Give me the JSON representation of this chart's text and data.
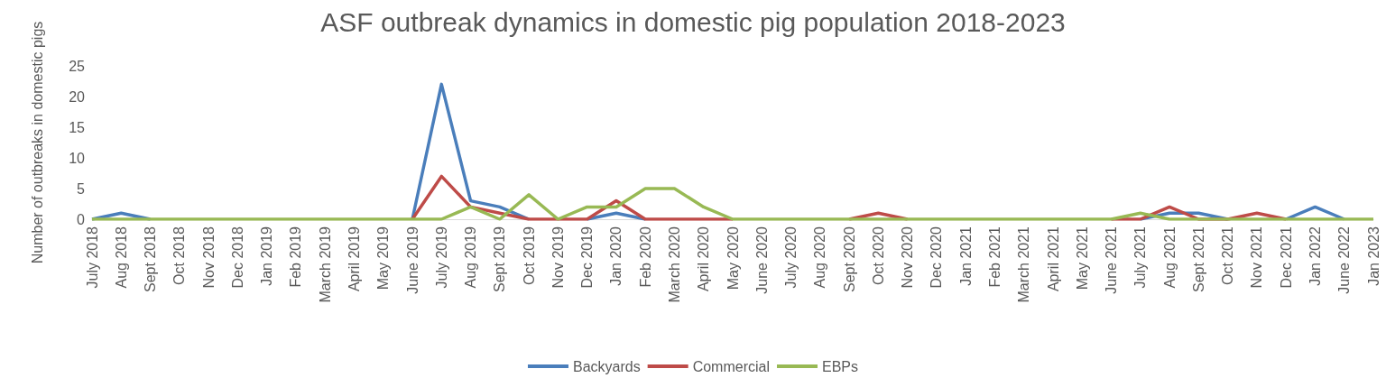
{
  "chart_data": {
    "type": "line",
    "title": "ASF outbreak dynamics in domestic pig population 2018-2023",
    "ylabel": "Number of outbreaks in domestic pigs",
    "categories": [
      "July 2018",
      "Aug 2018",
      "Sept 2018",
      "Oct 2018",
      "Nov 2018",
      "Dec 2018",
      "Jan 2019",
      "Feb 2019",
      "March 2019",
      "April 2019",
      "May 2019",
      "June 2019",
      "July 2019",
      "Aug 2019",
      "Sept 2019",
      "Oct 2019",
      "Nov 2019",
      "Dec 2019",
      "Jan 2020",
      "Feb 2020",
      "March 2020",
      "April 2020",
      "May 2020",
      "June 2020",
      "July 2020",
      "Aug 2020",
      "Sept 2020",
      "Oct 2020",
      "Nov 2020",
      "Dec 2020",
      "Jan 2021",
      "Feb 2021",
      "March 2021",
      "April 2021",
      "May 2021",
      "June 2021",
      "July 2021",
      "Aug 2021",
      "Sept 2021",
      "Oct 2021",
      "Nov 2021",
      "Dec 2021",
      "Jan 2022",
      "June 2022",
      "Jan 2023"
    ],
    "series": [
      {
        "name": "Backyards",
        "color": "#4a7ebb",
        "values": [
          0,
          1,
          0,
          null,
          null,
          null,
          null,
          null,
          null,
          null,
          null,
          0,
          22,
          3,
          2,
          0,
          null,
          0,
          1,
          0,
          null,
          null,
          null,
          null,
          null,
          null,
          null,
          null,
          null,
          null,
          null,
          null,
          null,
          null,
          null,
          null,
          0,
          1,
          1,
          0,
          null,
          0,
          2,
          0,
          null
        ]
      },
      {
        "name": "Commercial",
        "color": "#be4b48",
        "values": [
          null,
          null,
          null,
          null,
          null,
          null,
          null,
          null,
          null,
          null,
          null,
          0,
          7,
          2,
          1,
          0,
          0,
          0,
          3,
          0,
          0,
          0,
          0,
          null,
          null,
          null,
          0,
          1,
          0,
          null,
          null,
          null,
          null,
          null,
          null,
          0,
          0,
          2,
          0,
          0,
          1,
          0,
          null,
          null,
          null
        ]
      },
      {
        "name": "EBPs",
        "color": "#98b954",
        "values": [
          0,
          0,
          0,
          0,
          0,
          0,
          0,
          0,
          0,
          0,
          0,
          0,
          0,
          2,
          0,
          4,
          0,
          2,
          2,
          5,
          5,
          2,
          0,
          0,
          0,
          0,
          0,
          0,
          0,
          0,
          0,
          0,
          0,
          0,
          0,
          0,
          1,
          0,
          0,
          0,
          0,
          0,
          0,
          0,
          0
        ]
      }
    ],
    "ylim": [
      0,
      25
    ],
    "yticks": [
      0,
      5,
      10,
      15,
      20,
      25
    ],
    "grid": false,
    "legend": "bottom",
    "marker": "none",
    "line_style": "solid"
  }
}
